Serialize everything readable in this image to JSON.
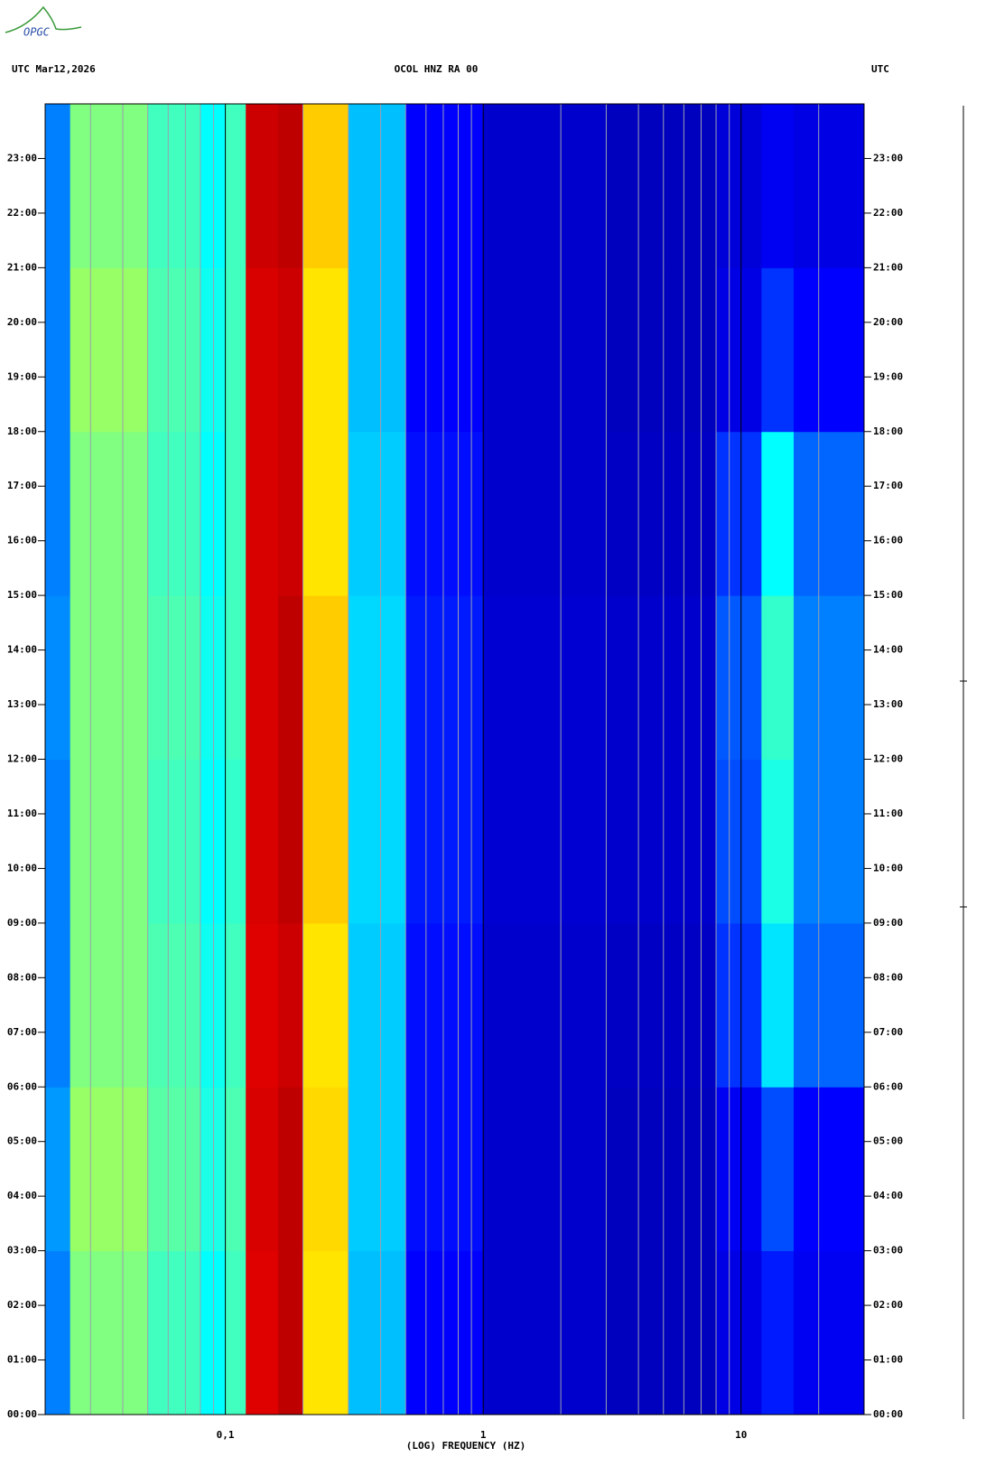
{
  "logo": "OPGC",
  "chart_data": {
    "type": "heatmap",
    "header_left": "UTC  Mar12,2026",
    "title": "OCOL HNZ RA 00",
    "header_right": "UTC",
    "xlabel": "(LOG) FREQUENCY (HZ)",
    "xscale": "log",
    "xlim": [
      0.02,
      30
    ],
    "xticks": [
      {
        "value": 0.1,
        "label": "0,1"
      },
      1,
      10
    ],
    "xgrid": [
      0.02,
      0.03,
      0.04,
      0.05,
      0.06,
      0.07,
      0.08,
      0.09,
      0.2,
      0.3,
      0.4,
      0.5,
      0.6,
      0.7,
      0.8,
      0.9,
      2,
      3,
      4,
      5,
      6,
      7,
      8,
      9,
      20,
      30
    ],
    "ylim": [
      0,
      24
    ],
    "yticks": [
      {
        "value": 0,
        "label": "00:00"
      },
      {
        "value": 1,
        "label": "01:00"
      },
      {
        "value": 2,
        "label": "02:00"
      },
      {
        "value": 3,
        "label": "03:00"
      },
      {
        "value": 4,
        "label": "04:00"
      },
      {
        "value": 5,
        "label": "05:00"
      },
      {
        "value": 6,
        "label": "06:00"
      },
      {
        "value": 7,
        "label": "07:00"
      },
      {
        "value": 8,
        "label": "08:00"
      },
      {
        "value": 9,
        "label": "09:00"
      },
      {
        "value": 10,
        "label": "10:00"
      },
      {
        "value": 11,
        "label": "11:00"
      },
      {
        "value": 12,
        "label": "12:00"
      },
      {
        "value": 13,
        "label": "13:00"
      },
      {
        "value": 14,
        "label": "14:00"
      },
      {
        "value": 15,
        "label": "15:00"
      },
      {
        "value": 16,
        "label": "16:00"
      },
      {
        "value": 17,
        "label": "17:00"
      },
      {
        "value": 18,
        "label": "18:00"
      },
      {
        "value": 19,
        "label": "19:00"
      },
      {
        "value": 20,
        "label": "20:00"
      },
      {
        "value": 21,
        "label": "21:00"
      },
      {
        "value": 22,
        "label": "22:00"
      },
      {
        "value": 23,
        "label": "23:00"
      }
    ],
    "x_bins": [
      0.02,
      0.025,
      0.05,
      0.08,
      0.1,
      0.12,
      0.16,
      0.2,
      0.3,
      0.5,
      1,
      3,
      8,
      12,
      16,
      30
    ],
    "y_bins": [
      0,
      3,
      6,
      9,
      12,
      15,
      18,
      21,
      24
    ],
    "zlim": [
      0,
      1
    ],
    "colorscale": [
      "#00007f",
      "#0000ff",
      "#00ffff",
      "#ffff00",
      "#ff0000",
      "#7f0000"
    ],
    "z": [
      [
        0.3,
        0.5,
        0.45,
        0.4,
        0.45,
        0.85,
        0.9,
        0.62,
        0.35,
        0.2,
        0.12,
        0.1,
        0.16,
        0.22,
        0.18
      ],
      [
        0.32,
        0.52,
        0.47,
        0.42,
        0.46,
        0.86,
        0.9,
        0.63,
        0.36,
        0.21,
        0.12,
        0.1,
        0.18,
        0.26,
        0.2
      ],
      [
        0.3,
        0.5,
        0.46,
        0.41,
        0.45,
        0.85,
        0.88,
        0.62,
        0.36,
        0.21,
        0.12,
        0.11,
        0.24,
        0.38,
        0.28
      ],
      [
        0.3,
        0.5,
        0.45,
        0.4,
        0.44,
        0.86,
        0.9,
        0.64,
        0.37,
        0.22,
        0.13,
        0.12,
        0.26,
        0.42,
        0.3
      ],
      [
        0.31,
        0.5,
        0.46,
        0.41,
        0.45,
        0.86,
        0.9,
        0.64,
        0.37,
        0.22,
        0.13,
        0.12,
        0.27,
        0.44,
        0.3
      ],
      [
        0.3,
        0.5,
        0.45,
        0.4,
        0.45,
        0.86,
        0.88,
        0.62,
        0.36,
        0.21,
        0.12,
        0.11,
        0.24,
        0.4,
        0.28
      ],
      [
        0.3,
        0.52,
        0.46,
        0.41,
        0.45,
        0.86,
        0.88,
        0.62,
        0.35,
        0.2,
        0.12,
        0.1,
        0.16,
        0.24,
        0.2
      ],
      [
        0.3,
        0.5,
        0.45,
        0.4,
        0.45,
        0.88,
        0.9,
        0.64,
        0.35,
        0.2,
        0.12,
        0.1,
        0.14,
        0.18,
        0.16
      ]
    ]
  }
}
